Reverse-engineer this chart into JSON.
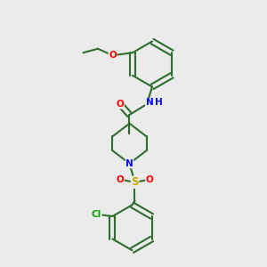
{
  "background_color": "#ebebeb",
  "bond_color": "#2d6e2d",
  "bond_lw": 1.5,
  "atom_colors": {
    "N": "#0000ff",
    "O": "#ff0000",
    "S": "#ccaa00",
    "Cl": "#00aa00",
    "C": "#2d6e2d"
  },
  "font_size": 7.5
}
